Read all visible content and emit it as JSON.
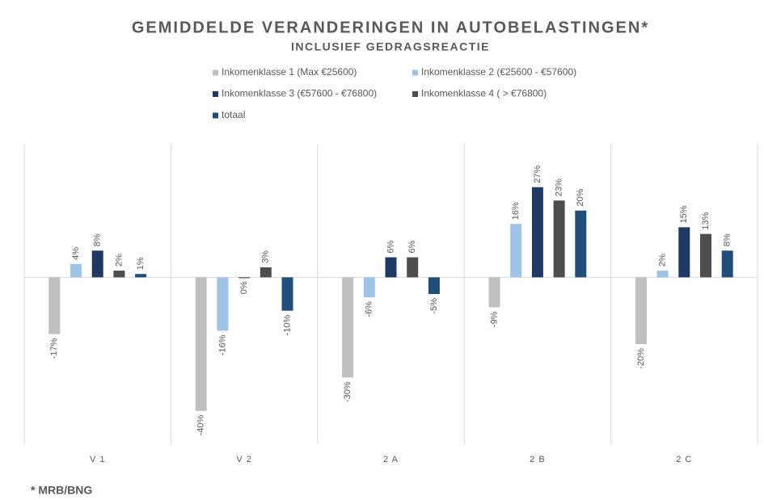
{
  "chart_data": {
    "type": "bar",
    "title": "GEMIDDELDE VERANDERINGEN IN AUTOBELASTINGEN*",
    "subtitle": "INCLUSIEF GEDRAGSREACTIE",
    "footnote": "* MRB/BNG",
    "categories": [
      "V 1",
      "V 2",
      "2 A",
      "2 B",
      "2 C"
    ],
    "ylim": [
      -50,
      40
    ],
    "series": [
      {
        "name": "Inkomenklasse 1 (Max €25600)",
        "color": "#bfbfbf",
        "values": [
          -17,
          -40,
          -30,
          -9,
          -20
        ],
        "value_labels": [
          "-17%",
          "-40%",
          "-30%",
          "-9%",
          "-20%"
        ]
      },
      {
        "name": "Inkomenklasse 2 (€25600 - €57600)",
        "color": "#9dc3e6",
        "values": [
          4,
          -16,
          -6,
          16,
          2
        ],
        "value_labels": [
          "4%",
          "-16%",
          "-6%",
          "16%",
          "2%"
        ]
      },
      {
        "name": "Inkomenklasse 3 (€57600 - €76800)",
        "color": "#203864",
        "values": [
          8,
          0,
          6,
          27,
          15
        ],
        "value_labels": [
          "8%",
          "0%",
          "6%",
          "27%",
          "15%"
        ]
      },
      {
        "name": "Inkomenklasse 4 ( > €76800)",
        "color": "#4d4d4d",
        "values": [
          2,
          3,
          6,
          23,
          13
        ],
        "value_labels": [
          "2%",
          "3%",
          "6%",
          "23%",
          "13%"
        ]
      },
      {
        "name": "totaal",
        "color": "#1f4e79",
        "values": [
          1,
          -10,
          -5,
          20,
          8
        ],
        "value_labels": [
          "1%",
          "-10%",
          "-5%",
          "20%",
          "8%"
        ]
      }
    ]
  }
}
